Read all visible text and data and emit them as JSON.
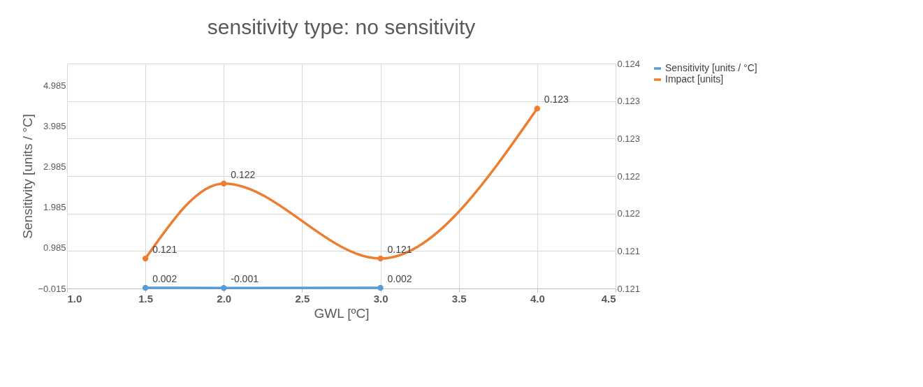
{
  "chart_data": {
    "type": "line",
    "title": "sensitivity type: no sensitivity",
    "xlabel": "GWL [ºC]",
    "ylabel": "Sensitivity [units / °C]",
    "x": [
      1.5,
      2.0,
      3.0,
      4.0
    ],
    "xlim": [
      1.0,
      4.5
    ],
    "xticks": [
      {
        "value": 1,
        "label": "1.0"
      },
      {
        "value": 1.5,
        "label": "1.5"
      },
      {
        "value": 2,
        "label": "2.0"
      },
      {
        "value": 2.5,
        "label": "2.5"
      },
      {
        "value": 3,
        "label": "3.0"
      },
      {
        "value": 3.5,
        "label": "3.5"
      },
      {
        "value": 4,
        "label": "4.0"
      },
      {
        "value": 4.5,
        "label": "4.5"
      }
    ],
    "ylim": [
      -0.015,
      5.535
    ],
    "yticks": [
      -0.015,
      0.985,
      1.985,
      2.985,
      3.985,
      4.985
    ],
    "y2lim": [
      0.121,
      0.124
    ],
    "y2ticks": [
      {
        "value": 0.121,
        "label": "0.121"
      },
      {
        "value": 0.1215,
        "label": "0.121"
      },
      {
        "value": 0.122,
        "label": "0.122"
      },
      {
        "value": 0.1225,
        "label": "0.122"
      },
      {
        "value": 0.123,
        "label": "0.123"
      },
      {
        "value": 0.1235,
        "label": "0.123"
      },
      {
        "value": 0.124,
        "label": "0.124"
      }
    ],
    "series": [
      {
        "name": "Sensitivity [units / °C]",
        "color": "#5b9bd5",
        "x": [
          1.5,
          2.0,
          3.0
        ],
        "values": [
          0.002,
          -0.001,
          0.002
        ],
        "value_labels": [
          "0.002",
          "-0.001",
          "0.002"
        ]
      },
      {
        "name": "Impact [units]",
        "color": "#ed7d31",
        "axis": "y2",
        "values": [
          0.1214,
          0.1224,
          0.1214,
          0.1234
        ],
        "value_labels": [
          "0.121",
          "0.122",
          "0.121",
          "0.123"
        ]
      }
    ],
    "grid": true,
    "legend": "right",
    "marker": "circle",
    "line_style": "solid"
  }
}
